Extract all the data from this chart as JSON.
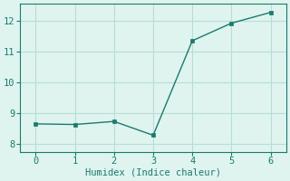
{
  "x": [
    0,
    1,
    2,
    3,
    4,
    5,
    6
  ],
  "y": [
    8.65,
    8.63,
    8.73,
    8.28,
    11.35,
    11.92,
    12.27
  ],
  "line_color": "#1a7a6e",
  "marker": "s",
  "marker_size": 2.5,
  "xlabel": "Humidex (Indice chaleur)",
  "xlim": [
    -0.4,
    6.4
  ],
  "ylim": [
    7.75,
    12.55
  ],
  "yticks": [
    8,
    9,
    10,
    11,
    12
  ],
  "xticks": [
    0,
    1,
    2,
    3,
    4,
    5,
    6
  ],
  "background_color": "#dff4ef",
  "grid_color": "#b8ddd7",
  "label_fontsize": 7.5,
  "tick_fontsize": 7.5,
  "line_width": 1.0
}
